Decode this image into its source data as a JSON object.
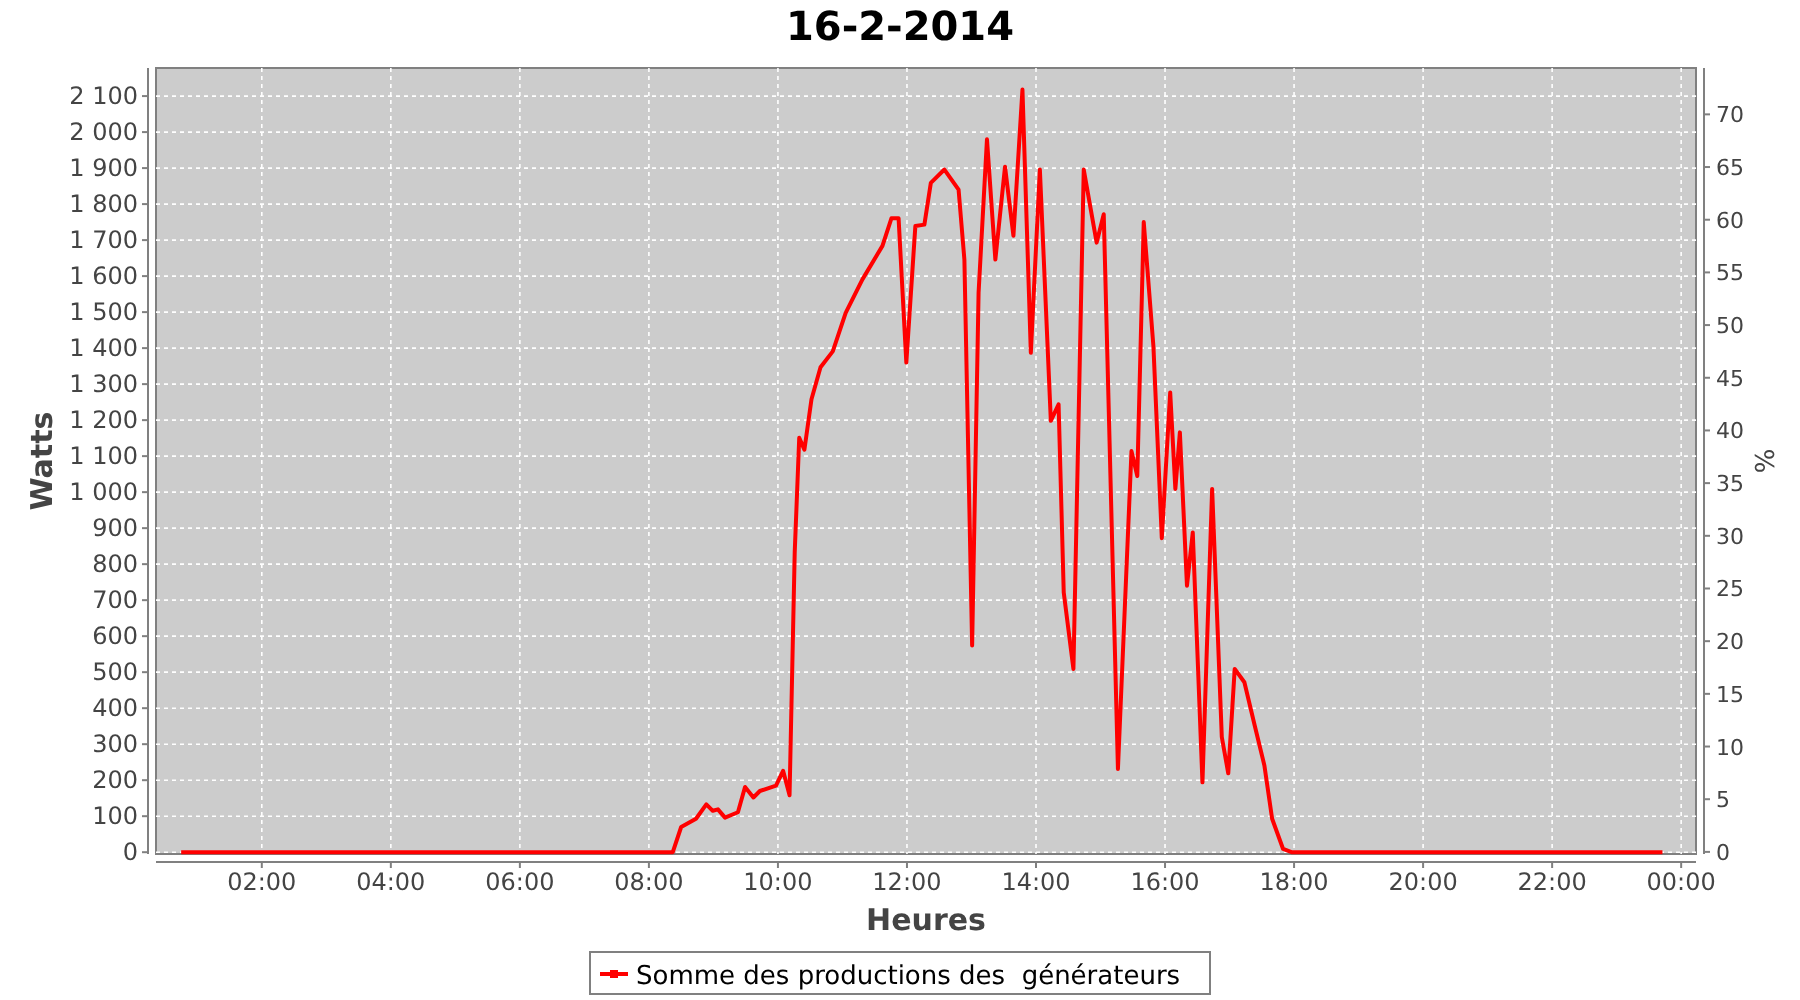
{
  "chart_data": {
    "type": "line",
    "title": "16-2-2014",
    "xlabel": "Heures",
    "ylabel": "Watts",
    "y2label": "%",
    "xlim": [
      0.36,
      24.23
    ],
    "xticks": [
      {
        "value": 2,
        "label": "02:00"
      },
      {
        "value": 4,
        "label": "04:00"
      },
      {
        "value": 6,
        "label": "06:00"
      },
      {
        "value": 8,
        "label": "08:00"
      },
      {
        "value": 10,
        "label": "10:00"
      },
      {
        "value": 12,
        "label": "12:00"
      },
      {
        "value": 14,
        "label": "14:00"
      },
      {
        "value": 16,
        "label": "16:00"
      },
      {
        "value": 18,
        "label": "18:00"
      },
      {
        "value": 20,
        "label": "20:00"
      },
      {
        "value": 22,
        "label": "22:00"
      },
      {
        "value": 24,
        "label": "00:00"
      }
    ],
    "ylim": [
      -5,
      2178
    ],
    "yticks": [
      0,
      100,
      200,
      300,
      400,
      500,
      600,
      700,
      800,
      900,
      {
        "value": 1000,
        "label": "1 000"
      },
      {
        "value": 1100,
        "label": "1 100"
      },
      {
        "value": 1200,
        "label": "1 200"
      },
      {
        "value": 1300,
        "label": "1 300"
      },
      {
        "value": 1400,
        "label": "1 400"
      },
      {
        "value": 1500,
        "label": "1 500"
      },
      {
        "value": 1600,
        "label": "1 600"
      },
      {
        "value": 1700,
        "label": "1 700"
      },
      {
        "value": 1800,
        "label": "1 800"
      },
      {
        "value": 1900,
        "label": "1 900"
      },
      {
        "value": 2000,
        "label": "2 000"
      },
      {
        "value": 2100,
        "label": "2 100"
      }
    ],
    "y2lim": [
      -0.2,
      74.4
    ],
    "y2ticks": [
      0,
      5,
      10,
      15,
      20,
      25,
      30,
      35,
      40,
      45,
      50,
      55,
      60,
      65,
      70
    ],
    "grid": true,
    "legend": "bottom",
    "marker": "none",
    "line_style": "solid",
    "series": [
      {
        "name": "Somme des productions des  générateurs",
        "color": "#ff0000",
        "x": [
          0.75,
          8.37,
          8.5,
          8.73,
          8.89,
          8.99,
          9.07,
          9.18,
          9.38,
          9.49,
          9.62,
          9.72,
          9.97,
          10.08,
          10.18,
          10.26,
          10.33,
          10.41,
          10.52,
          10.66,
          10.85,
          11.05,
          11.31,
          11.62,
          11.76,
          11.87,
          11.99,
          12.13,
          12.27,
          12.37,
          12.58,
          12.8,
          12.89,
          13.01,
          13.11,
          13.24,
          13.37,
          13.52,
          13.65,
          13.79,
          13.92,
          14.06,
          14.23,
          14.35,
          14.43,
          14.58,
          14.74,
          14.94,
          15.05,
          15.27,
          15.48,
          15.57,
          15.67,
          15.82,
          15.95,
          16.08,
          16.16,
          16.23,
          16.34,
          16.43,
          16.58,
          16.73,
          16.88,
          16.98,
          17.08,
          17.23,
          17.39,
          17.54,
          17.66,
          17.83,
          17.96,
          23.71
        ],
        "values": [
          0,
          0,
          70,
          93,
          133,
          115,
          119,
          96,
          111,
          181,
          152,
          170,
          185,
          226,
          158,
          832,
          1151,
          1118,
          1258,
          1347,
          1391,
          1498,
          1591,
          1684,
          1761,
          1761,
          1360,
          1739,
          1743,
          1859,
          1896,
          1840,
          1646,
          574,
          1554,
          1980,
          1646,
          1904,
          1712,
          2118,
          1387,
          1896,
          1198,
          1244,
          721,
          509,
          1896,
          1693,
          1772,
          231,
          1114,
          1045,
          1750,
          1405,
          872,
          1277,
          1009,
          1166,
          740,
          888,
          194,
          1009,
          320,
          219,
          509,
          472,
          352,
          241,
          93,
          9,
          0,
          0
        ]
      }
    ]
  }
}
